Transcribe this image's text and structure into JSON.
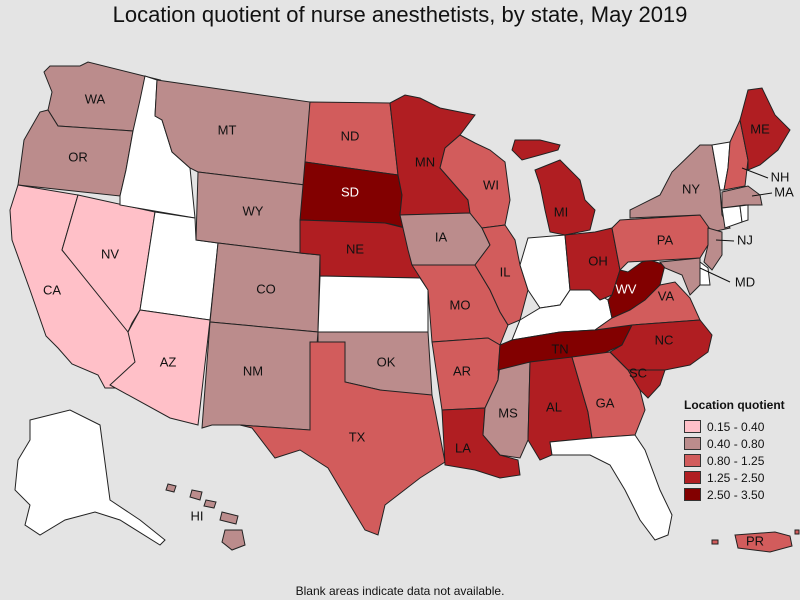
{
  "title": "Location quotient of nurse anesthetists, by state, May 2019",
  "footnote": "Blank areas indicate data not available.",
  "legend": {
    "title": "Location quotient",
    "classes": [
      {
        "label": "0.15 - 0.40",
        "color": "#ffc0c8"
      },
      {
        "label": "0.40 - 0.80",
        "color": "#bb8c8c"
      },
      {
        "label": "0.80 - 1.25",
        "color": "#d25c5c"
      },
      {
        "label": "1.25 - 2.50",
        "color": "#b01e22"
      },
      {
        "label": "2.50 - 3.50",
        "color": "#820000"
      }
    ]
  },
  "no_data_color": "#ffffff",
  "states": {
    "WA": {
      "class": 1
    },
    "OR": {
      "class": 1
    },
    "CA": {
      "class": 0
    },
    "NV": {
      "class": 0
    },
    "ID": {
      "class": null
    },
    "UT": {
      "class": null
    },
    "AZ": {
      "class": 0
    },
    "MT": {
      "class": 1
    },
    "WY": {
      "class": 1
    },
    "CO": {
      "class": 1
    },
    "NM": {
      "class": 1
    },
    "ND": {
      "class": 2
    },
    "SD": {
      "class": 4
    },
    "NE": {
      "class": 3
    },
    "KS": {
      "class": null
    },
    "OK": {
      "class": 1
    },
    "TX": {
      "class": 2
    },
    "MN": {
      "class": 3
    },
    "IA": {
      "class": 1
    },
    "MO": {
      "class": 2
    },
    "AR": {
      "class": 2
    },
    "LA": {
      "class": 3
    },
    "WI": {
      "class": 2
    },
    "IL": {
      "class": 2
    },
    "MS": {
      "class": 1
    },
    "MI": {
      "class": 3
    },
    "IN": {
      "class": null
    },
    "KY": {
      "class": null
    },
    "TN": {
      "class": 4
    },
    "AL": {
      "class": 3
    },
    "GA": {
      "class": 2
    },
    "FL": {
      "class": null
    },
    "OH": {
      "class": 3
    },
    "WV": {
      "class": 4
    },
    "VA": {
      "class": 2
    },
    "NC": {
      "class": 3
    },
    "SC": {
      "class": 3
    },
    "PA": {
      "class": 2
    },
    "NY": {
      "class": 1
    },
    "VT": {
      "class": null
    },
    "NH": {
      "class": 2
    },
    "ME": {
      "class": 3
    },
    "MA": {
      "class": 1
    },
    "CT": {
      "class": null
    },
    "RI": {
      "class": null
    },
    "NJ": {
      "class": 1
    },
    "DE": {
      "class": null
    },
    "MD": {
      "class": 1
    },
    "AK": {
      "class": null
    },
    "HI": {
      "class": 1
    },
    "PR": {
      "class": 2
    }
  }
}
